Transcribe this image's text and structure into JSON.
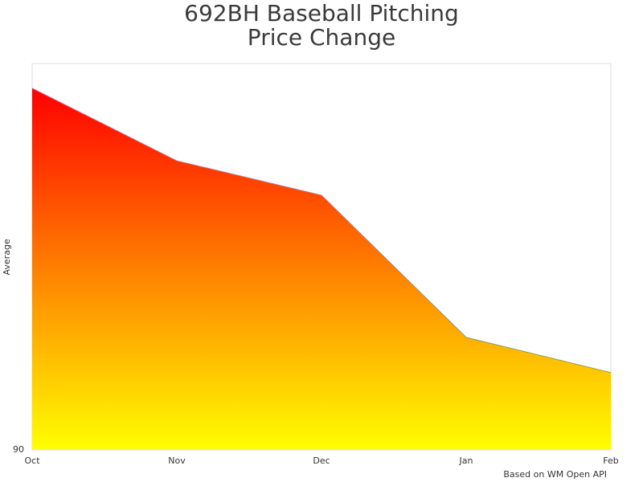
{
  "chart_data": {
    "type": "area",
    "title": [
      "692BH Baseball Pitching",
      "Price Change"
    ],
    "y_label": "Average",
    "source": "Based on WM Open API",
    "categories": [
      "Oct",
      "Nov",
      "Dec",
      "Jan",
      "Feb"
    ],
    "values": [
      99.36,
      97.48,
      96.59,
      92.91,
      92.0
    ],
    "line_color": "#5b9bd5",
    "gradient": [
      "#ff0000",
      "#ffff00"
    ],
    "ylim": [
      90,
      100
    ],
    "yticks": [
      90
    ],
    "grid": false
  }
}
